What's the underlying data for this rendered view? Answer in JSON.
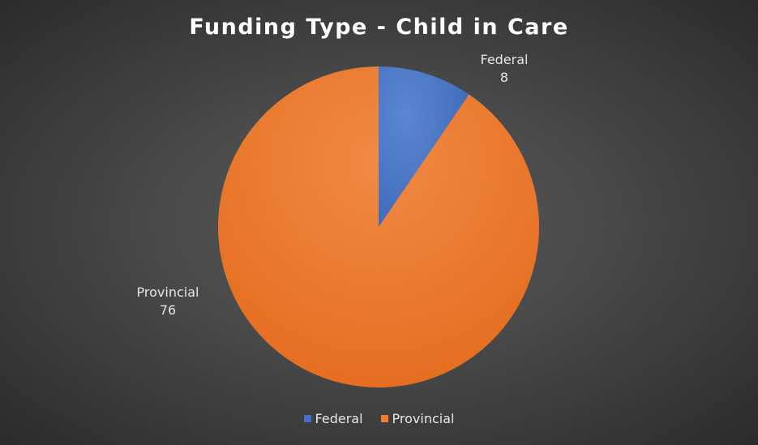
{
  "chart_data": {
    "type": "pie",
    "title": "Funding Type - Child in Care",
    "categories": [
      "Federal",
      "Provincial"
    ],
    "values": [
      8,
      76
    ],
    "colors": [
      "#4472C4",
      "#ED7D31"
    ],
    "legend_position": "bottom",
    "data_labels": [
      {
        "category": "Federal",
        "value": "8"
      },
      {
        "category": "Provincial",
        "value": "76"
      }
    ]
  },
  "legend": {
    "items": [
      {
        "label": "Federal",
        "color": "#4472C4"
      },
      {
        "label": "Provincial",
        "color": "#ED7D31"
      }
    ]
  }
}
